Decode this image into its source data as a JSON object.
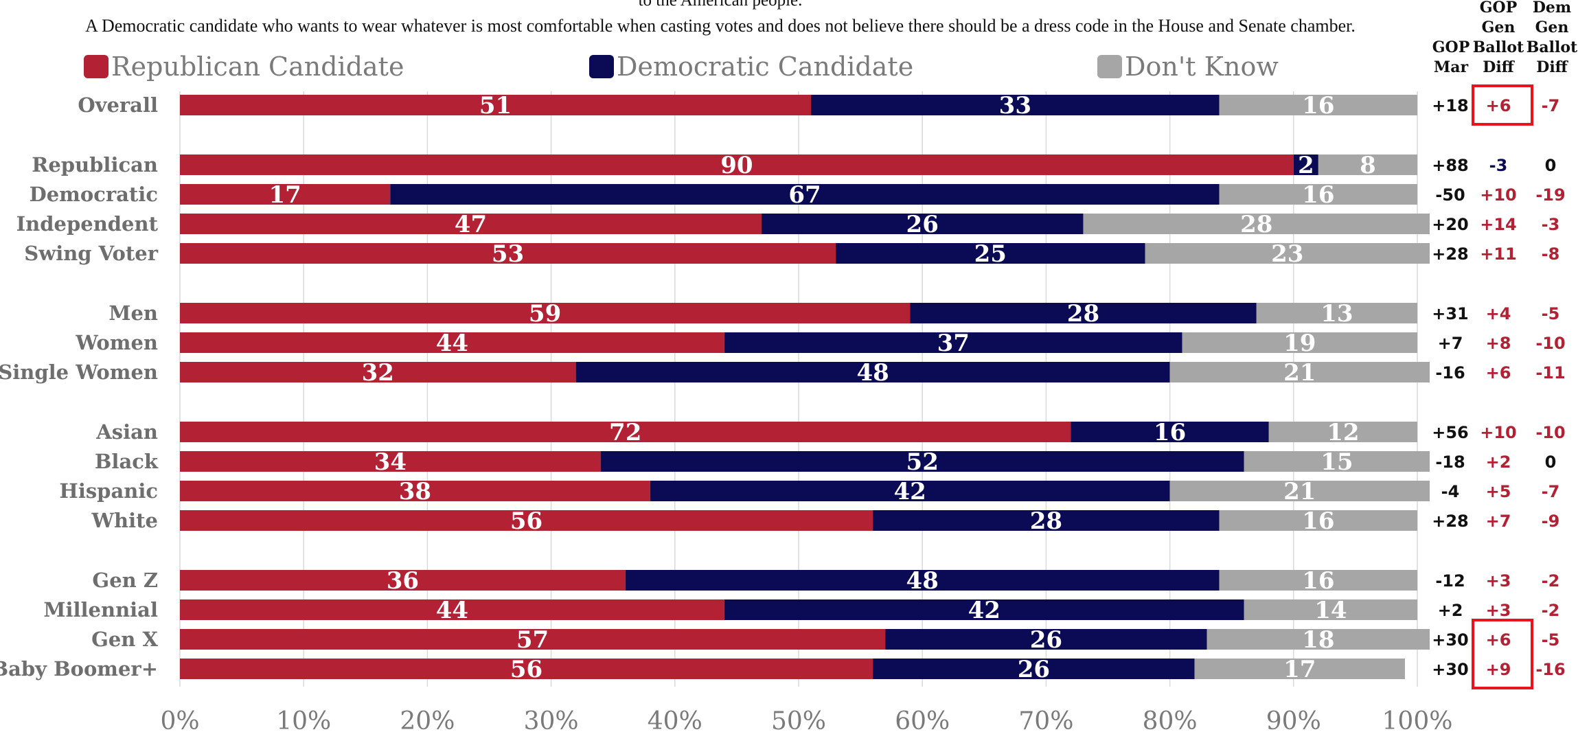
{
  "question_line1": "to the American people.",
  "question_line2": "A Democratic candidate who wants to wear whatever is most comfortable when casting votes and does not believe there should be a dress code in the House and Senate chamber.",
  "legend": [
    {
      "label": "Republican Candidate",
      "color": "#b22234"
    },
    {
      "label": "Democratic Candidate",
      "color": "#0a0a55"
    },
    {
      "label": "Don't Know",
      "color": "#a6a6a6"
    }
  ],
  "column_headers": {
    "gop_mar": [
      "GOP",
      "Mar"
    ],
    "gop_gen_ballot_diff": [
      "GOP",
      "Gen",
      "Ballot",
      "Diff"
    ],
    "dem_gen_ballot_diff": [
      "Dem",
      "Gen",
      "Ballot",
      "Diff"
    ]
  },
  "colors": {
    "republican": "#b22234",
    "democratic": "#0a0a55",
    "dont_know": "#a6a6a6",
    "positive_diff": "#b22234",
    "negative_gop_diff": "#0a0a55",
    "neutral": "#111111",
    "highlight": "#e8141b"
  },
  "chart_data": {
    "type": "bar",
    "orientation": "horizontal",
    "stacked": true,
    "xlim": [
      0,
      100
    ],
    "x_tick_labels": [
      "0%",
      "10%",
      "20%",
      "30%",
      "40%",
      "50%",
      "60%",
      "70%",
      "80%",
      "90%",
      "100%"
    ],
    "grid": true,
    "legend_position": "top",
    "categories": [
      "Overall",
      "Republican",
      "Democratic",
      "Independent",
      "Swing Voter",
      "Men",
      "Women",
      "Single Women",
      "Asian",
      "Black",
      "Hispanic",
      "White",
      "Gen Z",
      "Millennial",
      "Gen X",
      "Baby Boomer+"
    ],
    "series": [
      {
        "name": "Republican Candidate",
        "values": [
          51,
          90,
          17,
          47,
          53,
          59,
          44,
          32,
          72,
          34,
          38,
          56,
          36,
          44,
          57,
          56
        ]
      },
      {
        "name": "Democratic Candidate",
        "values": [
          33,
          2,
          67,
          26,
          25,
          28,
          37,
          48,
          16,
          52,
          42,
          28,
          48,
          42,
          26,
          26
        ]
      },
      {
        "name": "Don't Know",
        "values": [
          16,
          8,
          16,
          28,
          23,
          13,
          19,
          21,
          12,
          15,
          21,
          16,
          16,
          14,
          18,
          17
        ]
      }
    ],
    "bar_labels": [
      [
        "51",
        "33",
        "16"
      ],
      [
        "90",
        "2",
        "8"
      ],
      [
        "17",
        "67",
        "16"
      ],
      [
        "47",
        "26",
        "28"
      ],
      [
        "53",
        "25",
        "23"
      ],
      [
        "59",
        "28",
        "13"
      ],
      [
        "44",
        "37",
        "19"
      ],
      [
        "32",
        "48",
        "21"
      ],
      [
        "72",
        "16",
        "12"
      ],
      [
        "34",
        "52",
        "15"
      ],
      [
        "38",
        "42",
        "21"
      ],
      [
        "56",
        "28",
        "16"
      ],
      [
        "36",
        "48",
        "16"
      ],
      [
        "44",
        "42",
        "14"
      ],
      [
        "57",
        "26",
        "18"
      ],
      [
        "56",
        "26",
        "17"
      ]
    ],
    "gop_mar": [
      "+18",
      "+88",
      "-50",
      "+20",
      "+28",
      "+31",
      "+7",
      "-16",
      "+56",
      "-18",
      "-4",
      "+28",
      "-12",
      "+2",
      "+30",
      "+30"
    ],
    "gop_gen_ballot_diff": [
      "+6",
      "-3",
      "+10",
      "+14",
      "+11",
      "+4",
      "+8",
      "+6",
      "+10",
      "+2",
      "+5",
      "+7",
      "+3",
      "+3",
      "+6",
      "+9"
    ],
    "dem_gen_ballot_diff": [
      "-7",
      "0",
      "-19",
      "-3",
      "-8",
      "-5",
      "-10",
      "-11",
      "-10",
      "0",
      "-7",
      "-9",
      "-2",
      "-2",
      "-5",
      "-16"
    ],
    "highlighted_gop_diff_rows": [
      "Overall",
      "Gen X",
      "Baby Boomer+"
    ]
  }
}
